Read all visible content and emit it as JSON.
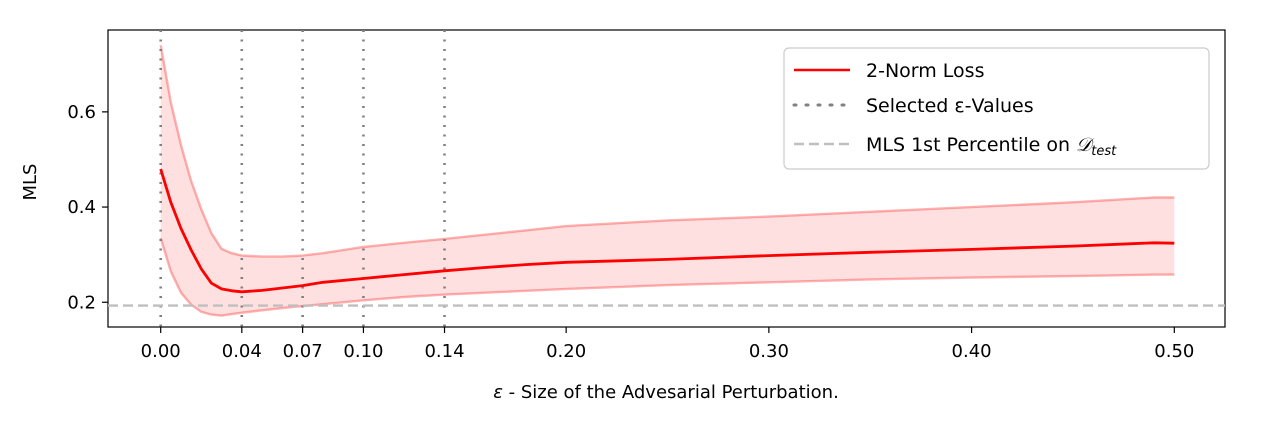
{
  "chart_data": {
    "type": "line",
    "xlabel_symbol": "ε",
    "xlabel_text": " - Size of the Advesarial Perturbation.",
    "ylabel": "MLS",
    "xlim": [
      -0.026,
      0.525
    ],
    "ylim": [
      0.148,
      0.772
    ],
    "xticks": [
      0.0,
      0.04,
      0.07,
      0.1,
      0.14,
      0.2,
      0.3,
      0.4,
      0.5
    ],
    "xtick_labels": [
      "0.00",
      "0.04",
      "0.07",
      "0.10",
      "0.14",
      "0.20",
      "0.30",
      "0.40",
      "0.50"
    ],
    "yticks": [
      0.2,
      0.4,
      0.6
    ],
    "ytick_labels": [
      "0.2",
      "0.4",
      "0.6"
    ],
    "grid": false,
    "legend_position": "top-right",
    "series": [
      {
        "name": "2-Norm Loss",
        "color": "#ff0000",
        "x": [
          0.0,
          0.005,
          0.01,
          0.015,
          0.02,
          0.025,
          0.03,
          0.035,
          0.04,
          0.05,
          0.06,
          0.07,
          0.08,
          0.1,
          0.12,
          0.14,
          0.16,
          0.18,
          0.2,
          0.25,
          0.3,
          0.35,
          0.4,
          0.45,
          0.49,
          0.5
        ],
        "y": [
          0.48,
          0.41,
          0.355,
          0.31,
          0.27,
          0.24,
          0.228,
          0.224,
          0.222,
          0.225,
          0.23,
          0.235,
          0.242,
          0.25,
          0.258,
          0.266,
          0.273,
          0.279,
          0.284,
          0.29,
          0.298,
          0.305,
          0.311,
          0.318,
          0.325,
          0.324
        ],
        "upper": [
          0.74,
          0.62,
          0.53,
          0.455,
          0.395,
          0.345,
          0.312,
          0.303,
          0.298,
          0.296,
          0.296,
          0.298,
          0.303,
          0.316,
          0.325,
          0.333,
          0.342,
          0.351,
          0.36,
          0.372,
          0.38,
          0.39,
          0.4,
          0.41,
          0.42,
          0.42
        ],
        "lower": [
          0.335,
          0.265,
          0.22,
          0.195,
          0.18,
          0.174,
          0.172,
          0.175,
          0.178,
          0.183,
          0.188,
          0.192,
          0.196,
          0.204,
          0.211,
          0.216,
          0.22,
          0.224,
          0.228,
          0.236,
          0.242,
          0.248,
          0.252,
          0.255,
          0.258,
          0.258
        ]
      }
    ],
    "selected_values": {
      "name": "Selected ε-Values",
      "color": "#808080",
      "x": [
        0.0,
        0.04,
        0.07,
        0.1,
        0.14
      ]
    },
    "threshold": {
      "name_text": "MLS 1st Percentile on ",
      "name_math": "𝒟",
      "name_sub": "test",
      "color": "#bfbfbf",
      "y": 0.193
    }
  }
}
